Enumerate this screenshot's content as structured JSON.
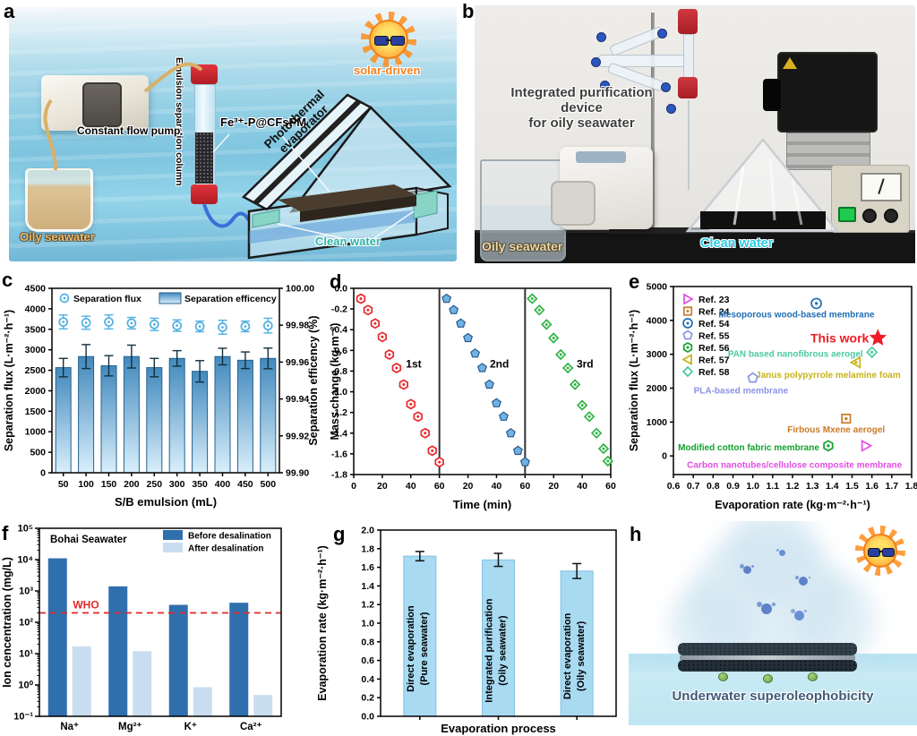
{
  "panels": {
    "a": {
      "letter": "a",
      "labels": {
        "oily_seawater": "Oily seawater",
        "pump": "Constant flow pump",
        "column": "Emulsion separation column",
        "membrane": "Fe³⁺-P@CFsPM",
        "solar": "solar-driven",
        "evaporator_line1": "Photothermal",
        "evaporator_line2": "evaporator",
        "clean_water": "Clean water"
      }
    },
    "b": {
      "letter": "b",
      "labels": {
        "title_line1": "Integrated purification device",
        "title_line2": "for oily seawater",
        "oily_seawater": "Oily seawater",
        "clean_water": "Clean water"
      }
    },
    "c": {
      "letter": "c"
    },
    "d": {
      "letter": "d"
    },
    "e": {
      "letter": "e"
    },
    "f": {
      "letter": "f"
    },
    "g": {
      "letter": "g"
    },
    "h": {
      "letter": "h",
      "labels": {
        "caption": "Underwater superoleophobicity"
      }
    }
  },
  "chart_data": [
    {
      "panel": "c",
      "type": "bar+scatter",
      "xlabel": "S/B emulsion (mL)",
      "ylabel_left": "Separation flux (L·m⁻²·h⁻¹)",
      "ylabel_right": "Separation efficency (%)",
      "legend": [
        "Separation flux",
        "Separation efficency"
      ],
      "categories": [
        50,
        100,
        150,
        200,
        250,
        300,
        350,
        400,
        450,
        500
      ],
      "separation_flux": [
        3680,
        3660,
        3680,
        3650,
        3620,
        3590,
        3570,
        3550,
        3570,
        3590
      ],
      "flux_err": [
        170,
        160,
        170,
        140,
        150,
        140,
        130,
        170,
        130,
        180
      ],
      "separation_efficiency": [
        99.957,
        99.963,
        99.958,
        99.963,
        99.957,
        99.962,
        99.955,
        99.963,
        99.961,
        99.962
      ],
      "efficiency_err": [
        0.005,
        0.0065,
        0.0055,
        0.0062,
        0.005,
        0.0042,
        0.0058,
        0.0045,
        0.0045,
        0.0056
      ],
      "ylim_left": [
        0,
        4500
      ],
      "yticks_left": [
        0,
        500,
        1000,
        1500,
        2000,
        2500,
        3000,
        3500,
        4000,
        4500
      ],
      "ylim_right": [
        99.9,
        100.0
      ],
      "yticks_right": [
        "99.90",
        "99.92",
        "99.94",
        "99.96",
        "99.98",
        "100.00"
      ],
      "colors": {
        "flux": "#4fb0e2",
        "bar_top": "#4289bd",
        "bar_bottom": "#d9effb",
        "bar_stroke": "#24628f",
        "err": "#13303f"
      }
    },
    {
      "panel": "d",
      "type": "scatter",
      "xlabel": "Time (min)",
      "ylabel": "Mass change (kg·m⁻²)",
      "ylim": [
        -1.8,
        0.0
      ],
      "yticks": [
        "0.0",
        "-0.2",
        "-0.4",
        "-0.6",
        "-0.8",
        "-1.0",
        "-1.2",
        "-1.4",
        "-1.6",
        "-1.8"
      ],
      "segment_xticks": [
        0,
        20,
        40,
        60
      ],
      "cycles": [
        {
          "name": "1st",
          "marker": "hexagon",
          "color": "#e8282c",
          "time": [
            5,
            10,
            15,
            20,
            25,
            30,
            35,
            40,
            45,
            50,
            55,
            60
          ],
          "mass_change": [
            -0.1,
            -0.21,
            -0.34,
            -0.47,
            -0.64,
            -0.77,
            -0.93,
            -1.12,
            -1.24,
            -1.4,
            -1.57,
            -1.68
          ]
        },
        {
          "name": "2nd",
          "marker": "pentagon",
          "color": "#6fb2e4",
          "time": [
            5,
            10,
            15,
            20,
            25,
            30,
            35,
            40,
            45,
            50,
            55,
            60
          ],
          "mass_change": [
            -0.1,
            -0.21,
            -0.34,
            -0.48,
            -0.63,
            -0.77,
            -0.93,
            -1.11,
            -1.24,
            -1.4,
            -1.57,
            -1.68
          ]
        },
        {
          "name": "3rd",
          "marker": "diamond",
          "color": "#2fb344",
          "time": [
            5,
            10,
            15,
            20,
            25,
            30,
            35,
            40,
            45,
            50,
            55,
            58
          ],
          "mass_change": [
            -0.1,
            -0.21,
            -0.35,
            -0.48,
            -0.64,
            -0.77,
            -0.93,
            -1.13,
            -1.24,
            -1.4,
            -1.55,
            -1.67
          ]
        }
      ]
    },
    {
      "panel": "e",
      "type": "scatter",
      "xlabel": "Evaporation rate (kg·m⁻²·h⁻¹)",
      "ylabel": "Separation flux (L·m⁻²·h⁻¹)",
      "xlim": [
        0.6,
        1.8
      ],
      "xticks": [
        "0.6",
        "0.7",
        "0.8",
        "0.9",
        "1.0",
        "1.1",
        "1.2",
        "1.3",
        "1.4",
        "1.5",
        "1.6",
        "1.7",
        "1.8"
      ],
      "ylim_display": [
        -550,
        5000
      ],
      "yticks": [
        0,
        1000,
        2000,
        3000,
        4000,
        5000
      ],
      "legend": [
        {
          "label": "Ref. 23",
          "marker": "triangle-right",
          "color": "#e24fe2"
        },
        {
          "label": "Ref. 24",
          "marker": "square",
          "color": "#c87a28"
        },
        {
          "label": "Ref. 54",
          "marker": "circle",
          "color": "#1e6eb5"
        },
        {
          "label": "Ref. 55",
          "marker": "pentagon",
          "color": "#8b93e6"
        },
        {
          "label": "Ref. 56",
          "marker": "hexagon",
          "color": "#12a12c"
        },
        {
          "label": "Ref. 57",
          "marker": "triangle-left",
          "color": "#c6b317"
        },
        {
          "label": "Ref. 58",
          "marker": "diamond",
          "color": "#4cc9a2"
        }
      ],
      "points": [
        {
          "name": "Mesoporous wood-based membrane",
          "ref": "Ref. 54",
          "marker": "circle",
          "color": "#1e6eb5",
          "x": 1.32,
          "y": 4500,
          "label_x": 1.22,
          "label_y": 4180,
          "anchor": "middle",
          "label_fs": 10
        },
        {
          "name": "This work",
          "ref": "This work",
          "marker": "star",
          "color": "#ee1c25",
          "x": 1.63,
          "y": 3480,
          "label_x": 1.585,
          "label_y": 3440,
          "anchor": "end",
          "label_fs": 14
        },
        {
          "name": "PAN based nanofibrous aerogel",
          "ref": "Ref. 58",
          "marker": "diamond",
          "color": "#4cc9a2",
          "x": 1.6,
          "y": 3060,
          "label_x": 1.555,
          "label_y": 3020,
          "anchor": "end",
          "label_fs": 10
        },
        {
          "name": "Janus polypyrrole melamine foam",
          "ref": "Ref. 57",
          "marker": "triangle-left",
          "color": "#c6b317",
          "x": 1.52,
          "y": 2760,
          "label_x": 1.38,
          "label_y": 2400,
          "anchor": "middle",
          "label_fs": 10
        },
        {
          "name": "PLA-based membrane",
          "ref": "Ref. 55",
          "marker": "pentagon",
          "color": "#8b93e6",
          "x": 1.0,
          "y": 2300,
          "label_x": 0.94,
          "label_y": 1930,
          "anchor": "middle",
          "label_fs": 10
        },
        {
          "name": "Firbous Mxene aerogel",
          "ref": "Ref. 24",
          "marker": "square",
          "color": "#c87a28",
          "x": 1.47,
          "y": 1100,
          "label_x": 1.42,
          "label_y": 790,
          "anchor": "middle",
          "label_fs": 10
        },
        {
          "name": "Modified cotton fabric membrane",
          "ref": "Ref. 56",
          "marker": "hexagon",
          "color": "#12a12c",
          "x": 1.38,
          "y": 300,
          "label_x": 1.335,
          "label_y": 260,
          "anchor": "end",
          "label_fs": 10
        },
        {
          "name": "Carbon nanotubes/cellulose composite membrane",
          "ref": "Ref. 23",
          "marker": "triangle-right",
          "color": "#e24fe2",
          "x": 1.57,
          "y": 300,
          "label_x": 1.21,
          "label_y": -260,
          "anchor": "middle",
          "label_fs": 10
        }
      ]
    },
    {
      "panel": "f",
      "type": "bar-log",
      "ylabel": "Ion cencentration (mg/L)",
      "annotation": "Bohai Seawater",
      "who": {
        "label": "WHO",
        "value": 200,
        "color": "#e02828"
      },
      "categories": [
        "Na⁺",
        "Mg²⁺",
        "K⁺",
        "Ca²⁺"
      ],
      "ylim_log_exp": [
        -1,
        5
      ],
      "yticks": [
        "10⁻¹",
        "10⁰",
        "10¹",
        "10²",
        "10³",
        "10⁴",
        "10⁵"
      ],
      "series": [
        {
          "name": "Before desalination",
          "color": "#2f6fad",
          "values": [
            11000,
            1400,
            360,
            420
          ]
        },
        {
          "name": "After desalination",
          "color": "#c9ddf0",
          "values": [
            17,
            12,
            0.85,
            0.48
          ]
        }
      ]
    },
    {
      "panel": "g",
      "type": "bar",
      "xlabel": "Evaporation process",
      "ylabel": "Evaporation rate (kg·m⁻²·h⁻¹)",
      "ylim": [
        0,
        2.0
      ],
      "yticks": [
        "0.0",
        "0.2",
        "0.4",
        "0.6",
        "0.8",
        "1.0",
        "1.2",
        "1.4",
        "1.6",
        "1.8",
        "2.0"
      ],
      "bar_color": "#a8daf2",
      "bar_stroke": "#7fc2e2",
      "bars": [
        {
          "label_line1": "Direct evaporation",
          "label_line2": "(Pure seawater)",
          "value": 1.72,
          "err": 0.05
        },
        {
          "label_line1": "Integrated purification",
          "label_line2": "(Oily seawater)",
          "value": 1.68,
          "err": 0.07
        },
        {
          "label_line1": "Direct evaporation",
          "label_line2": "(Oily seawater)",
          "value": 1.56,
          "err": 0.08
        }
      ]
    }
  ]
}
